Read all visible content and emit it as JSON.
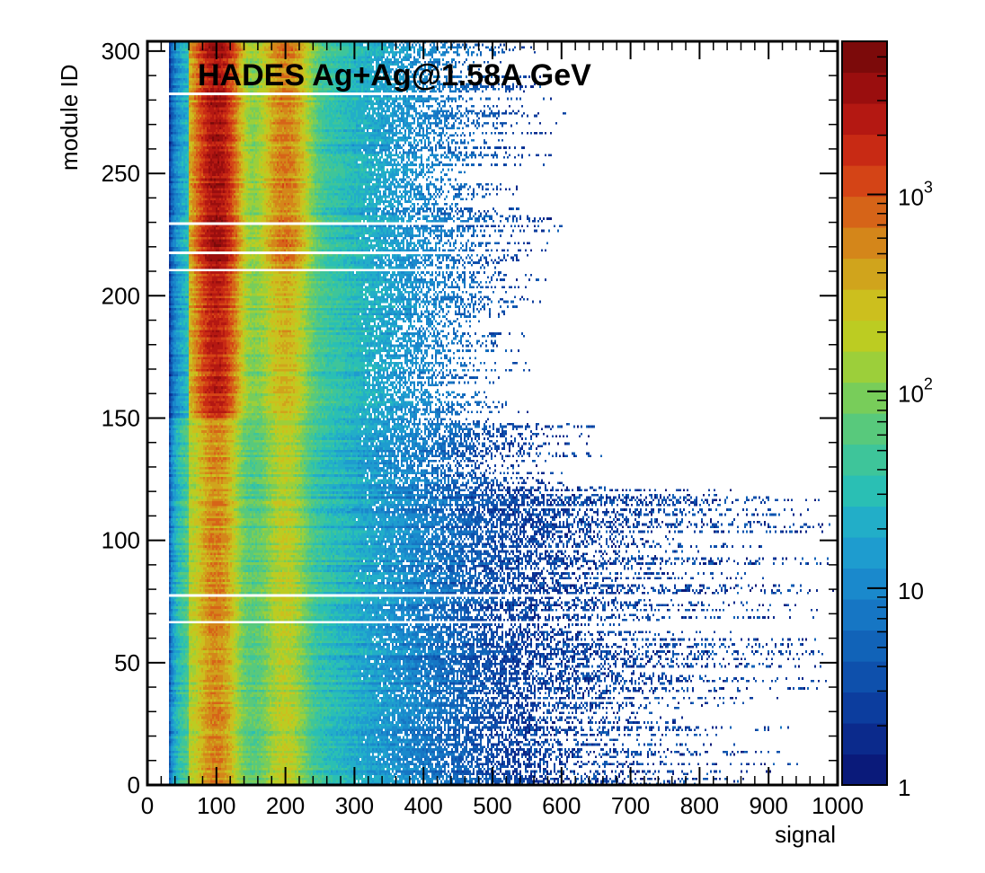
{
  "chart_data": {
    "type": "heatmap",
    "title": "HADES Ag+Ag@1.58A GeV",
    "xlabel": "signal",
    "ylabel": "module ID",
    "xlim": [
      0,
      1000
    ],
    "ylim": [
      0,
      304
    ],
    "x_ticks": [
      "0",
      "100",
      "200",
      "300",
      "400",
      "500",
      "600",
      "700",
      "800",
      "900",
      "1000"
    ],
    "y_ticks": [
      "0",
      "50",
      "100",
      "150",
      "200",
      "250",
      "300"
    ],
    "z_scale": "log",
    "z_range": [
      1,
      6000
    ],
    "z_ticks": [
      {
        "label_base": "1",
        "label_exp": "",
        "value": 1
      },
      {
        "label_base": "10",
        "label_exp": "",
        "value": 10
      },
      {
        "label_base": "10",
        "label_exp": "2",
        "value": 100
      },
      {
        "label_base": "10",
        "label_exp": "3",
        "value": 1000
      }
    ],
    "palette": [
      "#0a1a7a",
      "#0b2a8c",
      "#0c3d9e",
      "#0e50ac",
      "#1163b8",
      "#1676c4",
      "#1a89cc",
      "#1e9ccf",
      "#22aec8",
      "#2abfb4",
      "#3ec59a",
      "#58c97c",
      "#78cd5a",
      "#9ccf3a",
      "#bccc22",
      "#ccbf1e",
      "#d0a41c",
      "#d4861a",
      "#d66418",
      "#d44416",
      "#c82a14",
      "#b41812",
      "#9a0e0e",
      "#7c0a0a"
    ],
    "empty_module_ids": [
      66,
      77,
      210,
      217,
      229,
      282
    ],
    "features": {
      "pedestal_peak_signal": 100,
      "second_peak_signal": 200,
      "long_tail_modules_max_signal": 1000,
      "upper_modules_max_signal": 700
    }
  }
}
